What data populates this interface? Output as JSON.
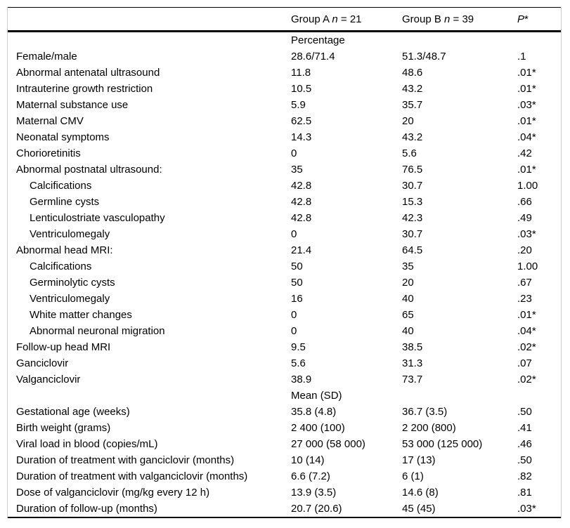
{
  "header": {
    "group_a": {
      "prefix": "Group A ",
      "n": "n",
      "rest": " = 21"
    },
    "group_b": {
      "prefix": "Group B ",
      "n": "n",
      "rest": " = 39"
    },
    "p": {
      "symbol": "P",
      "star": "*"
    }
  },
  "table": {
    "rows": [
      {
        "type": "section",
        "label": "Percentage"
      },
      {
        "type": "data",
        "label": "Female/male",
        "indent": false,
        "a": "28.6/71.4",
        "b": "51.3/48.7",
        "p": ".1"
      },
      {
        "type": "data",
        "label": "Abnormal antenatal ultrasound",
        "indent": false,
        "a": "11.8",
        "b": "48.6",
        "p": ".01*"
      },
      {
        "type": "data",
        "label": "Intrauterine growth restriction",
        "indent": false,
        "a": "10.5",
        "b": "43.2",
        "p": ".01*"
      },
      {
        "type": "data",
        "label": "Maternal substance use",
        "indent": false,
        "a": "5.9",
        "b": "35.7",
        "p": ".03*"
      },
      {
        "type": "data",
        "label": "Maternal CMV",
        "indent": false,
        "a": "62.5",
        "b": "20",
        "p": ".01*"
      },
      {
        "type": "data",
        "label": "Neonatal symptoms",
        "indent": false,
        "a": "14.3",
        "b": "43.2",
        "p": ".04*"
      },
      {
        "type": "data",
        "label": "Chorioretinitis",
        "indent": false,
        "a": "0",
        "b": "5.6",
        "p": ".42"
      },
      {
        "type": "data",
        "label": "Abnormal postnatal ultrasound:",
        "indent": false,
        "a": "35",
        "b": "76.5",
        "p": ".01*"
      },
      {
        "type": "data",
        "label": "Calcifications",
        "indent": true,
        "a": "42.8",
        "b": "30.7",
        "p": "1.00"
      },
      {
        "type": "data",
        "label": "Germline cysts",
        "indent": true,
        "a": "42.8",
        "b": "15.3",
        "p": ".66"
      },
      {
        "type": "data",
        "label": "Lenticulostriate vasculopathy",
        "indent": true,
        "a": "42.8",
        "b": "42.3",
        "p": ".49"
      },
      {
        "type": "data",
        "label": "Ventriculomegaly",
        "indent": true,
        "a": "0",
        "b": "30.7",
        "p": ".03*"
      },
      {
        "type": "data",
        "label": "Abnormal head MRI:",
        "indent": false,
        "a": "21.4",
        "b": "64.5",
        "p": ".20"
      },
      {
        "type": "data",
        "label": "Calcifications",
        "indent": true,
        "a": "50",
        "b": "35",
        "p": "1.00"
      },
      {
        "type": "data",
        "label": "Germinolytic cysts",
        "indent": true,
        "a": "50",
        "b": "20",
        "p": ".67"
      },
      {
        "type": "data",
        "label": "Ventriculomegaly",
        "indent": true,
        "a": "16",
        "b": "40",
        "p": ".23"
      },
      {
        "type": "data",
        "label": "White matter changes",
        "indent": true,
        "a": "0",
        "b": "65",
        "p": ".01*"
      },
      {
        "type": "data",
        "label": "Abnormal neuronal migration",
        "indent": true,
        "a": "0",
        "b": "40",
        "p": ".04*"
      },
      {
        "type": "data",
        "label": "Follow-up head MRI",
        "indent": false,
        "a": "9.5",
        "b": "38.5",
        "p": ".02*"
      },
      {
        "type": "data",
        "label": "Ganciclovir",
        "indent": false,
        "a": "5.6",
        "b": "31.3",
        "p": ".07"
      },
      {
        "type": "data",
        "label": "Valganciclovir",
        "indent": false,
        "a": "38.9",
        "b": "73.7",
        "p": ".02*"
      },
      {
        "type": "section",
        "label": "Mean (SD)"
      },
      {
        "type": "data",
        "label": "Gestational age (weeks)",
        "indent": false,
        "a": "35.8 (4.8)",
        "b": "36.7 (3.5)",
        "p": ".50"
      },
      {
        "type": "data",
        "label": "Birth weight (grams)",
        "indent": false,
        "a": "2 400 (100)",
        "b": "2 200 (800)",
        "p": ".41"
      },
      {
        "type": "data",
        "label": "Viral load in blood (copies/mL)",
        "indent": false,
        "a": "27 000 (58 000)",
        "b": "53 000 (125 000)",
        "p": ".46"
      },
      {
        "type": "data",
        "label": "Duration of treatment with ganciclovir (months)",
        "indent": false,
        "a": "10 (14)",
        "b": "17 (13)",
        "p": ".50"
      },
      {
        "type": "data",
        "label": "Duration of treatment with valganciclovir (months)",
        "indent": false,
        "a": "6.6 (7.2)",
        "b": "6 (1)",
        "p": ".82"
      },
      {
        "type": "data",
        "label": "Dose of valganciclovir (mg/kg every 12 h)",
        "indent": false,
        "a": "13.9 (3.5)",
        "b": "14.6 (8)",
        "p": ".81"
      },
      {
        "type": "data",
        "label": "Duration of follow-up (months)",
        "indent": false,
        "a": "20.7 (20.6)",
        "b": "45 (45)",
        "p": ".03*"
      }
    ]
  },
  "colors": {
    "rule": "#000000",
    "side_border": "#cccccc",
    "text": "#000000",
    "background": "#ffffff"
  }
}
